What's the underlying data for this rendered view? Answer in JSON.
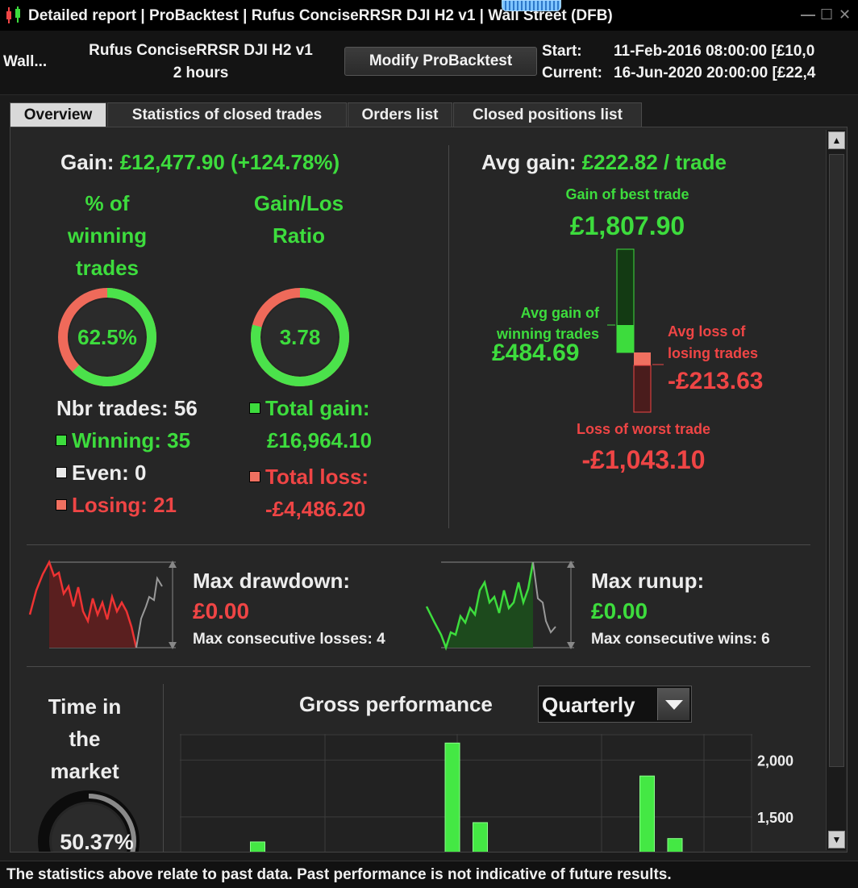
{
  "window": {
    "title": "Detailed report | ProBacktest | Rufus ConciseRRSR DJI H2 v1 | Wall Street (DFB)"
  },
  "header": {
    "instrument": "Wall...",
    "strategy_name": "Rufus ConciseRRSR DJI H2 v1",
    "timeframe": "2 hours",
    "modify_label": "Modify ProBacktest",
    "start_label": "Start:",
    "start_value": "11-Feb-2016 08:00:00 [£10,0",
    "current_label": "Current:",
    "current_value": "16-Jun-2020 20:00:00 [£22,4"
  },
  "tabs": [
    {
      "label": "Overview"
    },
    {
      "label": "Statistics of closed trades"
    },
    {
      "label": "Orders list"
    },
    {
      "label": "Closed positions list"
    }
  ],
  "overview": {
    "gain_label": "Gain:",
    "gain_value": "£12,477.90 (+124.78%)",
    "win_pct_title": [
      "% of",
      "winning",
      "trades"
    ],
    "win_pct_value": "62.5%",
    "win_pct_fraction": 0.625,
    "ratio_title": [
      "Gain/Los",
      "Ratio"
    ],
    "ratio_value": "3.78",
    "ratio_fraction": 0.79,
    "nbr_trades": "Nbr trades: 56",
    "winning": "Winning: 35",
    "even": "Even: 0",
    "losing": "Losing: 21",
    "total_gain_label": "Total gain:",
    "total_gain_value": "£16,964.10",
    "total_loss_label": "Total loss:",
    "total_loss_value": "-£4,486.20",
    "avg_gain_label": "Avg gain:",
    "avg_gain_value": "£222.82 / trade",
    "best_trade_label": "Gain of best trade",
    "best_trade_value": "£1,807.90",
    "avg_win_label": [
      "Avg gain of",
      "winning trades"
    ],
    "avg_win_value": "£484.69",
    "avg_loss_label": [
      "Avg loss of",
      "losing trades"
    ],
    "avg_loss_value": "-£213.63",
    "worst_trade_label": "Loss of worst trade",
    "worst_trade_value": "-£1,043.10"
  },
  "drawdown": {
    "label": "Max drawdown:",
    "value": "£0.00",
    "consecutive": "Max consecutive losses: 4"
  },
  "runup": {
    "label": "Max runup:",
    "value": "£0.00",
    "consecutive": "Max consecutive wins: 6"
  },
  "time_market": {
    "title": [
      "Time in",
      "the",
      "market"
    ],
    "value": "50.37%",
    "fraction": 0.5037
  },
  "gross": {
    "title": "Gross performance",
    "period": "Quarterly"
  },
  "chart_data": {
    "type": "bar",
    "title": "Gross performance",
    "y_ticks": [
      1500,
      2000
    ],
    "ylim_visible": [
      1180,
      2230
    ],
    "bars": [
      {
        "x_index": 1,
        "value": 1280
      },
      {
        "x_index": 8,
        "value": 2150
      },
      {
        "x_index": 9,
        "value": 1450
      },
      {
        "x_index": 15,
        "value": 1860
      },
      {
        "x_index": 16,
        "value": 1310
      }
    ]
  },
  "footer": {
    "disclaimer": "The statistics above relate to past data. Past performance is not indicative of future results."
  },
  "colors": {
    "gain": "#3ddc3d",
    "loss": "#ef4545",
    "panel": "#262626"
  }
}
